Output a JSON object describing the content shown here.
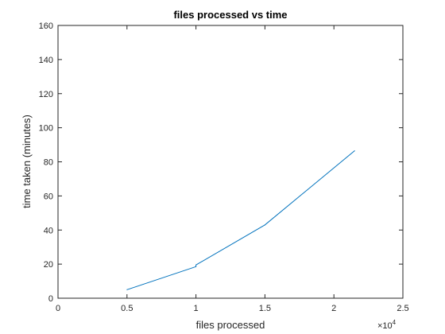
{
  "chart_data": {
    "type": "line",
    "title": "files processed vs time",
    "xlabel": "files processed",
    "ylabel": "time taken (minutes)",
    "x_exponent_base": "×10",
    "x_exponent_power": "4",
    "xlim": [
      0,
      2.5
    ],
    "ylim": [
      0,
      160
    ],
    "x_ticks": [
      0,
      0.5,
      1,
      1.5,
      2,
      2.5
    ],
    "x_tick_labels": [
      "0",
      "0.5",
      "1",
      "1.5",
      "2",
      "2.5"
    ],
    "y_ticks": [
      0,
      20,
      40,
      60,
      80,
      100,
      120,
      140,
      160
    ],
    "y_tick_labels": [
      "0",
      "20",
      "40",
      "60",
      "80",
      "100",
      "120",
      "140",
      "160"
    ],
    "grid": false,
    "series": [
      {
        "x": [
          0.5,
          1.0,
          1.0,
          1.5,
          2.15
        ],
        "y": [
          5,
          18.5,
          19.5,
          43,
          86.5
        ],
        "color": "#0072BD"
      }
    ]
  }
}
